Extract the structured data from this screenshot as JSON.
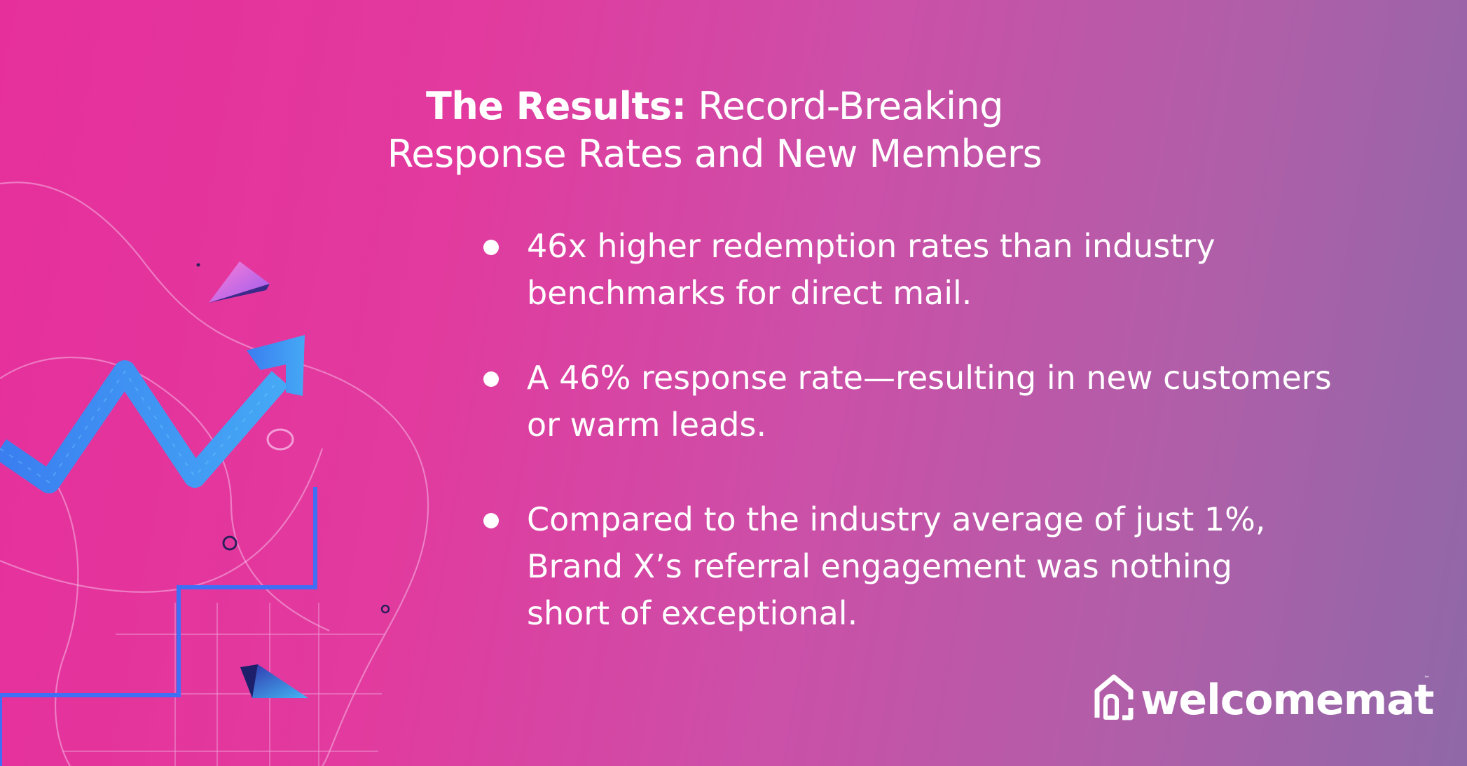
{
  "colors": {
    "background_start": "#e62f9b",
    "background_end": "#8f68a8",
    "text": "#ffffff",
    "arrow": "#3c8cf2",
    "line_blue": "#3f6ff5"
  },
  "title": {
    "strong": "The Results:",
    "rest": " Record-Breaking",
    "line2": "Response Rates and New Members"
  },
  "bullets": [
    {
      "text": "46x higher redemption rates than industry\n benchmarks for direct mail."
    },
    {
      "text": " A 46% response rate—resulting in new customers\nor warm leads."
    },
    {
      "text": "Compared to the industry average of just 1%,\nBrand X’s referral engagement was nothing\nshort of exceptional."
    }
  ],
  "logo": {
    "text": "welcomemat",
    "icon": "house-icon",
    "tm": "™"
  },
  "decoration": {
    "arrow_icon": "trend-arrow-icon",
    "shapes": [
      "triangle-icon",
      "circle-icon",
      "step-line-icon"
    ]
  }
}
